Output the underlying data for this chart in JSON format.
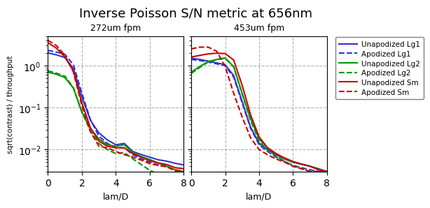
{
  "title": "Inverse Poisson S/N metric at 656nm",
  "subtitle1": "272um fpm",
  "subtitle2": "453um fpm",
  "xlabel": "lam/D",
  "ylabel": "sqrt(contrast) / throughput",
  "xlim": [
    0,
    8
  ],
  "ylim_log": [
    0.003,
    5
  ],
  "xticks": [
    0,
    2,
    4,
    6,
    8
  ],
  "colors": {
    "blue": "#3333cc",
    "green": "#009900",
    "red": "#cc0000"
  },
  "legend_labels": [
    "Unapodized Lg1",
    "Apodized Lg1",
    "Unapodized Lg2",
    "Apodized Lg2",
    "Unapodized Sm",
    "Apodized Sm"
  ],
  "panel1": {
    "x": [
      0.0,
      0.5,
      1.0,
      1.5,
      2.0,
      2.5,
      3.0,
      3.5,
      4.0,
      4.5,
      5.0,
      5.5,
      6.0,
      6.5,
      7.0,
      7.5,
      8.0
    ],
    "unapod_lg1": [
      2.0,
      1.8,
      1.55,
      0.85,
      0.18,
      0.05,
      0.025,
      0.017,
      0.013,
      0.014,
      0.009,
      0.0076,
      0.0066,
      0.0057,
      0.0053,
      0.0047,
      0.0043
    ],
    "apod_lg1": [
      2.3,
      2.1,
      1.85,
      1.05,
      0.22,
      0.052,
      0.021,
      0.014,
      0.011,
      0.011,
      0.0075,
      0.006,
      0.005,
      0.0043,
      0.0039,
      0.0033,
      0.003
    ],
    "unapod_lg2": [
      0.7,
      0.62,
      0.52,
      0.29,
      0.078,
      0.032,
      0.018,
      0.013,
      0.012,
      0.013,
      0.0085,
      0.0068,
      0.0058,
      0.0048,
      0.004,
      0.0033,
      0.003
    ],
    "apod_lg2": [
      0.75,
      0.66,
      0.56,
      0.3,
      0.078,
      0.028,
      0.014,
      0.01,
      0.008,
      0.0085,
      0.006,
      0.0044,
      0.0032,
      0.0026,
      0.0022,
      0.0022,
      0.0022
    ],
    "unapod_sm": [
      3.5,
      2.6,
      1.6,
      0.75,
      0.13,
      0.033,
      0.016,
      0.012,
      0.011,
      0.011,
      0.008,
      0.0066,
      0.0054,
      0.0048,
      0.0044,
      0.0037,
      0.0035
    ],
    "apod_sm": [
      4.0,
      3.0,
      1.75,
      0.7,
      0.11,
      0.027,
      0.012,
      0.011,
      0.009,
      0.0076,
      0.0066,
      0.0056,
      0.0046,
      0.0042,
      0.0039,
      0.0031,
      0.003
    ]
  },
  "panel2": {
    "x": [
      0.0,
      0.5,
      1.0,
      1.5,
      2.0,
      2.5,
      3.0,
      3.5,
      4.0,
      4.5,
      5.0,
      5.5,
      6.0,
      6.5,
      7.0,
      7.5,
      8.0
    ],
    "unapod_lg1": [
      1.5,
      1.4,
      1.28,
      1.16,
      1.05,
      0.58,
      0.14,
      0.034,
      0.014,
      0.01,
      0.0075,
      0.006,
      0.005,
      0.0045,
      0.004,
      0.0035,
      0.003
    ],
    "apod_lg1": [
      1.4,
      1.32,
      1.22,
      1.1,
      1.0,
      0.53,
      0.13,
      0.032,
      0.013,
      0.009,
      0.0066,
      0.0052,
      0.0042,
      0.0037,
      0.0033,
      0.003,
      0.003
    ],
    "unapod_lg2": [
      0.7,
      0.95,
      1.25,
      1.4,
      1.52,
      0.95,
      0.22,
      0.054,
      0.018,
      0.011,
      0.008,
      0.006,
      0.005,
      0.0045,
      0.004,
      0.0034,
      0.003
    ],
    "apod_lg2": [
      0.65,
      0.9,
      1.22,
      1.38,
      1.5,
      0.93,
      0.21,
      0.049,
      0.016,
      0.0095,
      0.007,
      0.0053,
      0.004,
      0.0035,
      0.003,
      0.003,
      0.003
    ],
    "unapod_sm": [
      1.6,
      1.75,
      1.9,
      1.97,
      1.93,
      1.36,
      0.34,
      0.067,
      0.02,
      0.011,
      0.008,
      0.0063,
      0.0052,
      0.0045,
      0.004,
      0.0033,
      0.003
    ],
    "apod_sm": [
      2.5,
      2.75,
      2.75,
      2.2,
      0.95,
      0.22,
      0.06,
      0.019,
      0.01,
      0.0075,
      0.006,
      0.005,
      0.004,
      0.0035,
      0.003,
      0.003,
      0.003
    ]
  }
}
